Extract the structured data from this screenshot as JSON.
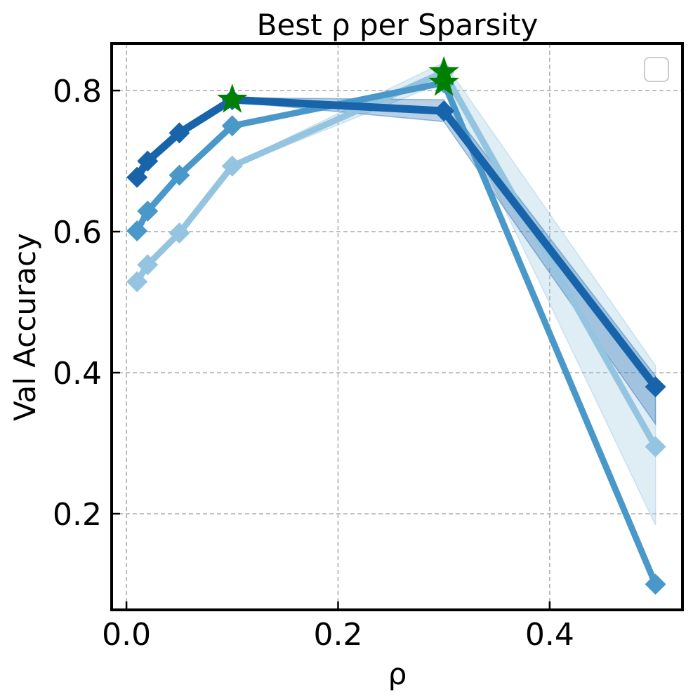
{
  "chart_data": {
    "type": "line",
    "title": "Best ρ per Sparsity",
    "xlabel": "ρ",
    "ylabel": "Val Accuracy",
    "xlim": [
      -0.014,
      0.5255
    ],
    "ylim": [
      0.0637,
      0.8667
    ],
    "xticks": [
      0.0,
      0.2,
      0.4
    ],
    "xtick_labels": [
      "0.0",
      "0.2",
      "0.4"
    ],
    "yticks": [
      0.2,
      0.4,
      0.6,
      0.8
    ],
    "ytick_labels": [
      "0.2",
      "0.4",
      "0.6",
      "0.8"
    ],
    "grid": true,
    "legend": {
      "placement": "top-right",
      "entries": []
    },
    "x": [
      0.01,
      0.02,
      0.05,
      0.1,
      0.3,
      0.5
    ],
    "series": [
      {
        "color": "#94c4df",
        "values": [
          0.529,
          0.553,
          0.598,
          0.693,
          0.826,
          0.295
        ],
        "band_low": [
          0.527,
          0.551,
          0.596,
          0.691,
          0.812,
          0.184
        ],
        "band_high": [
          0.531,
          0.555,
          0.6,
          0.695,
          0.84,
          0.41
        ],
        "best_x": 0.3
      },
      {
        "color": "#4a98c9",
        "values": [
          0.601,
          0.629,
          0.68,
          0.75,
          0.811,
          0.1
        ],
        "band_low": [
          0.6,
          0.628,
          0.679,
          0.749,
          0.808,
          0.098
        ],
        "band_high": [
          0.602,
          0.63,
          0.681,
          0.751,
          0.814,
          0.102
        ],
        "best_x": 0.3
      },
      {
        "color": "#1764ab",
        "values": [
          0.677,
          0.7,
          0.74,
          0.787,
          0.771,
          0.38
        ],
        "band_low": [
          0.675,
          0.698,
          0.738,
          0.784,
          0.756,
          0.327
        ],
        "band_high": [
          0.679,
          0.702,
          0.742,
          0.79,
          0.787,
          0.395
        ],
        "best_x": 0.1
      }
    ],
    "best_marker_color": "#008000"
  }
}
